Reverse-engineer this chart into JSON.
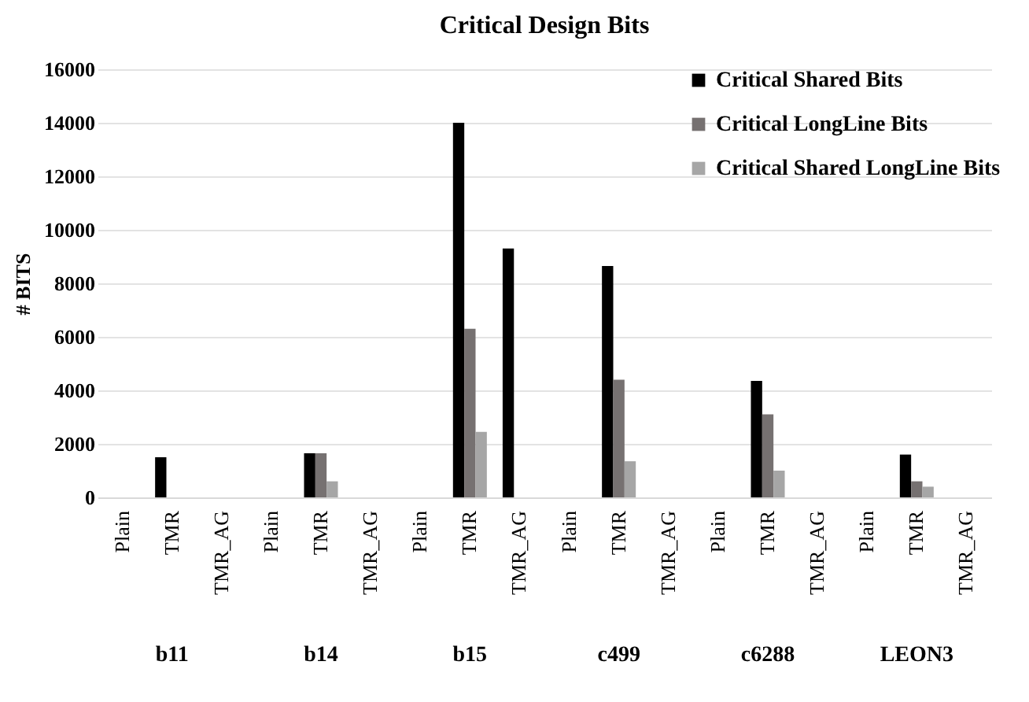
{
  "chart_data": {
    "type": "bar",
    "title": "Critical Design Bits",
    "ylabel": "# BITS",
    "categories": [
      "Plain",
      "TMR",
      "TMR_AG",
      "Plain",
      "TMR",
      "TMR_AG",
      "Plain",
      "TMR",
      "TMR_AG",
      "Plain",
      "TMR",
      "TMR_AG",
      "Plain",
      "TMR",
      "TMR_AG",
      "Plain",
      "TMR",
      "TMR_AG"
    ],
    "annotations": [
      "b11",
      "b14",
      "b15",
      "c499",
      "c6288",
      "LEON3"
    ],
    "series": [
      {
        "name": "Critical Shared Bits",
        "color": "#000000",
        "values": [
          0,
          1500,
          0,
          0,
          1650,
          0,
          0,
          14000,
          9300,
          0,
          8650,
          0,
          0,
          4350,
          0,
          0,
          1600,
          0
        ]
      },
      {
        "name": "Critical LongLine Bits",
        "color": "#767171",
        "values": [
          0,
          0,
          0,
          0,
          1650,
          0,
          0,
          6300,
          0,
          0,
          4400,
          0,
          0,
          3100,
          0,
          0,
          600,
          0
        ]
      },
      {
        "name": "Critical Shared LongLine Bits",
        "color": "#a6a6a6",
        "values": [
          0,
          0,
          0,
          0,
          600,
          0,
          0,
          2450,
          0,
          0,
          1350,
          0,
          0,
          1000,
          0,
          0,
          400,
          0
        ]
      }
    ],
    "ylim": [
      0,
      16000
    ],
    "yticks": [
      0,
      2000,
      4000,
      6000,
      8000,
      10000,
      12000,
      14000,
      16000
    ],
    "grid": "y",
    "legend": "top right"
  }
}
